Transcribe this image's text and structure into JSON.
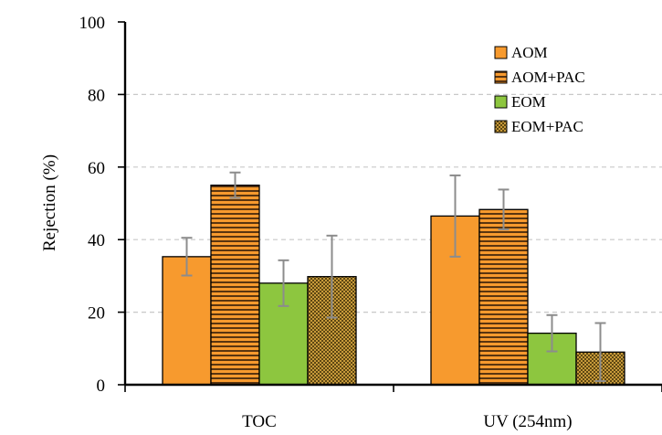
{
  "chart_data": {
    "type": "bar",
    "ylabel": "Rejection  (%)",
    "xlabel": "",
    "title": "",
    "ylim": [
      0,
      100
    ],
    "yticks": [
      0,
      20,
      40,
      60,
      80,
      100
    ],
    "grid": "horizontal-dashed",
    "legend_position": "top-right",
    "categories": [
      "TOC",
      "UV (254nm)"
    ],
    "series": [
      {
        "name": "AOM",
        "color": "#F79A2E",
        "pattern": "solid",
        "values": [
          35.3,
          46.5
        ],
        "errors": [
          5.2,
          11.2
        ]
      },
      {
        "name": "AOM+PAC",
        "color": "#F79A2E",
        "pattern": "horizontal-stripes",
        "values": [
          55.0,
          48.3
        ],
        "errors": [
          3.5,
          5.5
        ]
      },
      {
        "name": "EOM",
        "color": "#8DC63F",
        "pattern": "solid",
        "values": [
          28.0,
          14.2
        ],
        "errors": [
          6.3,
          5.0
        ]
      },
      {
        "name": "EOM+PAC",
        "color": "#B5892E",
        "pattern": "checkered",
        "values": [
          29.8,
          9.0
        ],
        "errors": [
          11.3,
          8.0
        ]
      }
    ]
  }
}
